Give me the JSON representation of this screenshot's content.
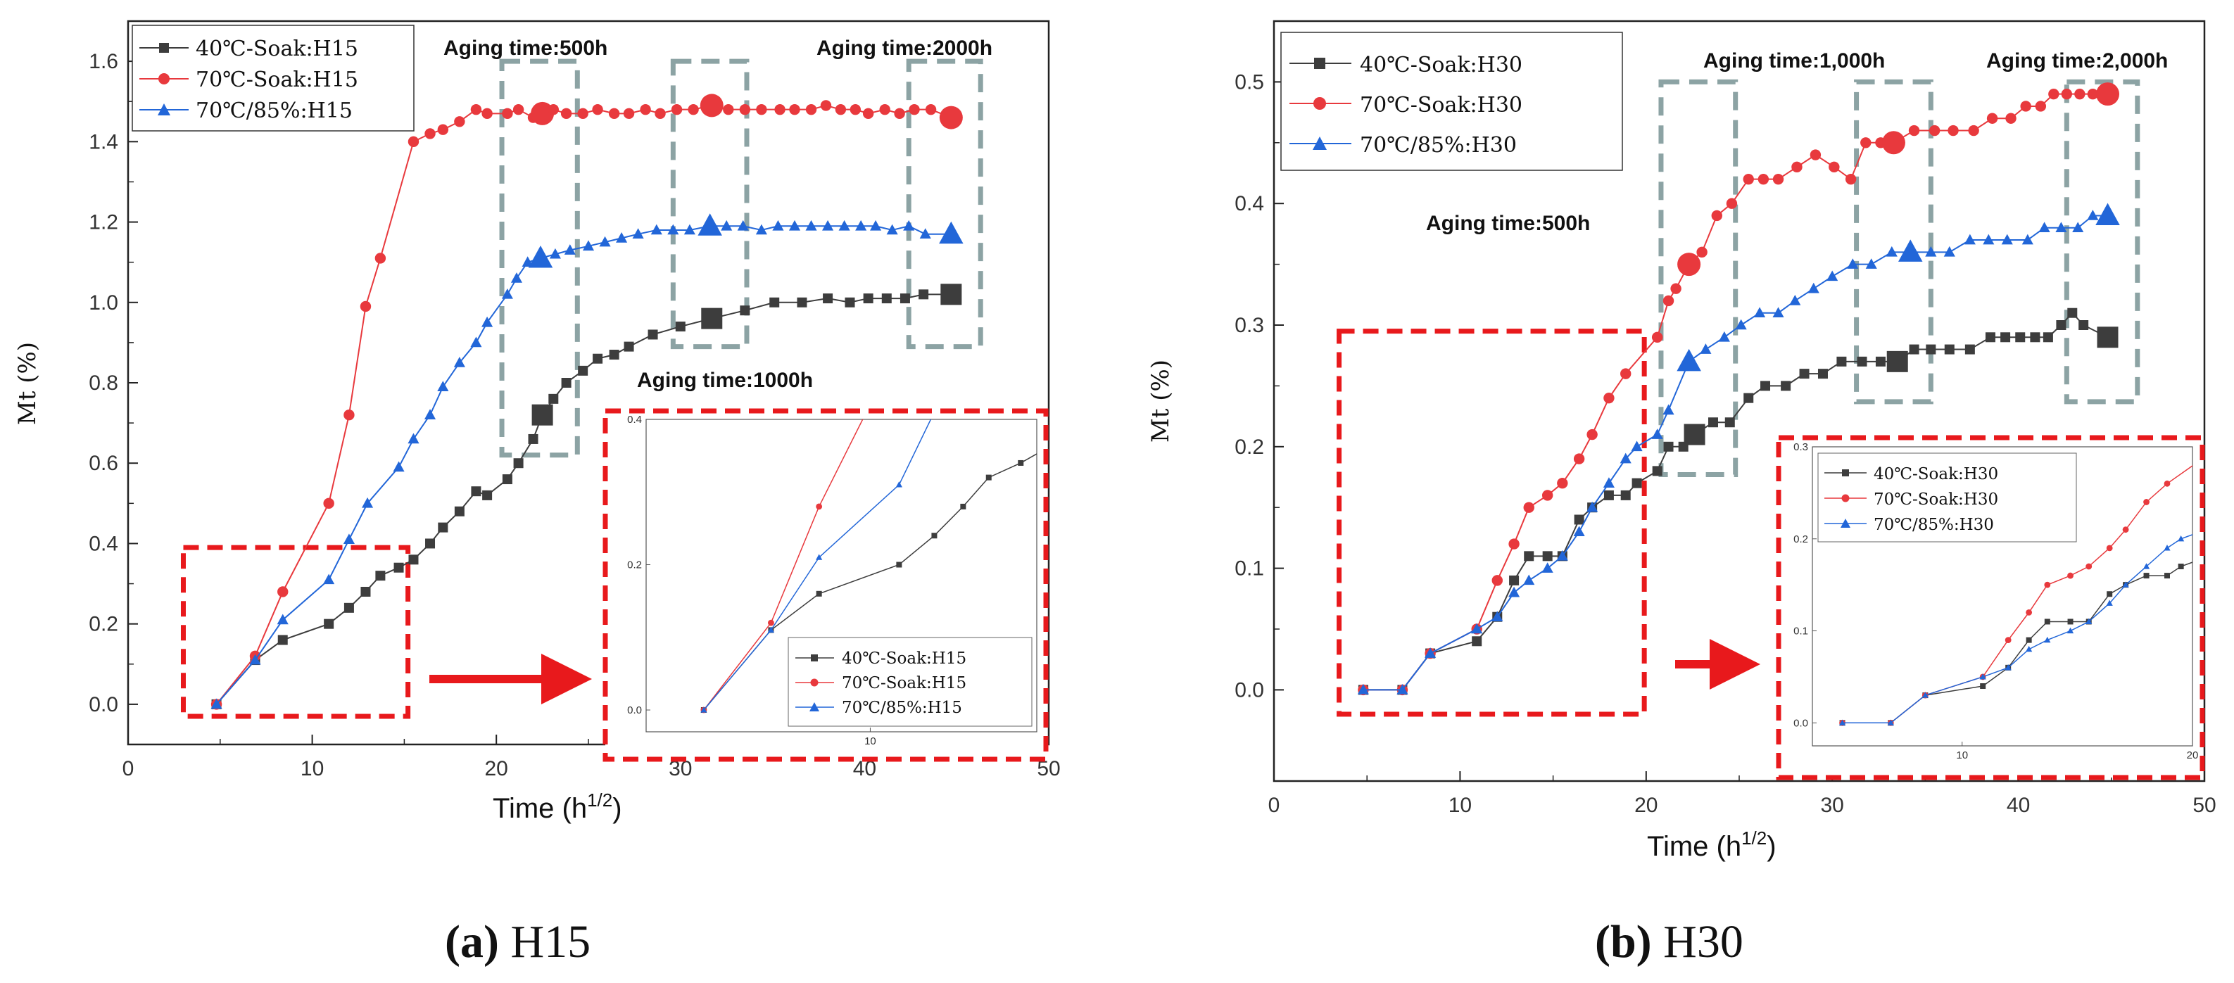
{
  "colors": {
    "series": [
      "#3d3d3d",
      "#e8393d",
      "#2266d8"
    ],
    "annotation_box": "#e8191c",
    "aging_box": "#8ca3a4"
  },
  "chart_data": [
    {
      "type": "line",
      "panel": "a",
      "caption_letter": "(a)",
      "caption_text": " H15",
      "xlabel": "Time (h",
      "xlabel_sup": "1/2",
      "xlabel_close": ")",
      "ylabel": "Mt  (%)",
      "xlim": [
        0,
        50
      ],
      "ylim": [
        -0.1,
        1.7
      ],
      "xticks": [
        0,
        10,
        20,
        30,
        40,
        50
      ],
      "xtick_labels": [
        "0",
        "10",
        "20",
        "30",
        "40",
        "50"
      ],
      "yticks": [
        0,
        0.2,
        0.4,
        0.6,
        0.8,
        1.0,
        1.2,
        1.4,
        1.6
      ],
      "ytick_labels": [
        "0.0",
        "0.2",
        "0.4",
        "0.6",
        "0.8",
        "1.0",
        "1.2",
        "1.4",
        "1.6"
      ],
      "legend_position": "top-left",
      "series": [
        {
          "name": "40℃-Soak:H15",
          "marker": "square",
          "x": [
            4.8,
            6.9,
            8.4,
            10.9,
            12.0,
            12.9,
            13.7,
            14.7,
            15.5,
            16.4,
            17.1,
            18.0,
            18.9,
            19.5,
            20.6,
            21.2,
            22.0,
            22.5,
            23.1,
            23.8,
            24.7,
            25.5,
            26.4,
            27.2,
            28.5,
            30.0,
            31.7,
            33.5,
            35.1,
            36.6,
            38.0,
            39.2,
            40.2,
            41.2,
            42.2,
            43.2,
            44.7
          ],
          "y": [
            0,
            0.11,
            0.16,
            0.2,
            0.24,
            0.28,
            0.32,
            0.34,
            0.36,
            0.4,
            0.44,
            0.48,
            0.53,
            0.52,
            0.56,
            0.6,
            0.66,
            0.72,
            0.76,
            0.8,
            0.83,
            0.86,
            0.87,
            0.89,
            0.92,
            0.94,
            0.96,
            0.98,
            1.0,
            1.0,
            1.01,
            1.0,
            1.01,
            1.01,
            1.01,
            1.02,
            1.02
          ],
          "big_marker_index": [
            17,
            26,
            36
          ]
        },
        {
          "name": "70℃-Soak:H15",
          "marker": "circle",
          "x": [
            4.8,
            6.9,
            8.4,
            10.9,
            12.0,
            12.9,
            13.7,
            15.5,
            16.4,
            17.1,
            18.0,
            18.9,
            19.5,
            20.6,
            21.2,
            22.0,
            22.5,
            23.1,
            23.8,
            24.7,
            25.5,
            26.4,
            27.2,
            28.1,
            28.9,
            29.8,
            30.7,
            31.7,
            32.6,
            33.5,
            34.4,
            35.4,
            36.2,
            37.1,
            37.9,
            38.7,
            39.5,
            40.2,
            41.1,
            41.9,
            42.7,
            43.6,
            44.7
          ],
          "y": [
            0,
            0.12,
            0.28,
            0.5,
            0.72,
            0.99,
            1.11,
            1.4,
            1.42,
            1.43,
            1.45,
            1.48,
            1.47,
            1.47,
            1.48,
            1.46,
            1.47,
            1.48,
            1.47,
            1.47,
            1.48,
            1.47,
            1.47,
            1.48,
            1.47,
            1.48,
            1.48,
            1.49,
            1.48,
            1.48,
            1.48,
            1.48,
            1.48,
            1.48,
            1.49,
            1.48,
            1.48,
            1.47,
            1.48,
            1.47,
            1.48,
            1.48,
            1.46
          ],
          "big_marker_index": [
            16,
            27,
            42
          ]
        },
        {
          "name": "70℃/85%:H15",
          "marker": "triangle",
          "x": [
            4.8,
            6.9,
            8.4,
            10.9,
            12.0,
            13.0,
            14.7,
            15.5,
            16.4,
            17.1,
            18.0,
            18.9,
            19.5,
            20.6,
            21.1,
            21.7,
            22.4,
            23.2,
            24.0,
            25.0,
            25.9,
            26.8,
            27.7,
            28.7,
            29.6,
            30.5,
            31.6,
            32.5,
            33.4,
            34.4,
            35.3,
            36.2,
            37.1,
            38.0,
            38.9,
            39.8,
            40.6,
            41.5,
            42.4,
            43.3,
            44.7
          ],
          "y": [
            0,
            0.11,
            0.21,
            0.31,
            0.41,
            0.5,
            0.59,
            0.66,
            0.72,
            0.79,
            0.85,
            0.9,
            0.95,
            1.02,
            1.06,
            1.1,
            1.11,
            1.12,
            1.13,
            1.14,
            1.15,
            1.16,
            1.17,
            1.18,
            1.18,
            1.18,
            1.19,
            1.19,
            1.19,
            1.18,
            1.19,
            1.19,
            1.19,
            1.19,
            1.19,
            1.19,
            1.19,
            1.18,
            1.19,
            1.17,
            1.17
          ],
          "big_marker_index": [
            16,
            26,
            40
          ]
        }
      ],
      "zoom_box": {
        "x": [
          3,
          15.2
        ],
        "y": [
          -0.03,
          0.39
        ]
      },
      "aging_boxes": [
        {
          "x": [
            20.3,
            24.4
          ],
          "y": [
            0.62,
            1.6
          ]
        },
        {
          "x": [
            29.6,
            33.6
          ],
          "y": [
            0.89,
            1.6
          ]
        },
        {
          "x": [
            42.4,
            46.3
          ],
          "y": [
            0.89,
            1.6
          ]
        }
      ],
      "annotations": [
        "Aging time:500h",
        "Aging time:2000h",
        "Aging time:1000h"
      ],
      "inset": {
        "xlim": [
          3,
          15.2
        ],
        "ylim": [
          -0.03,
          0.4
        ],
        "xticks": [
          10
        ],
        "xtick_labels": [
          "10"
        ],
        "yticks": [
          0,
          0.2,
          0.4
        ],
        "ytick_labels": [
          "0.0",
          "0.2",
          "0.4"
        ],
        "legend_position": "bottom-right"
      }
    },
    {
      "type": "line",
      "panel": "b",
      "caption_letter": "(b)",
      "caption_text": " H30",
      "xlabel": "Time (h",
      "xlabel_sup": "1/2",
      "xlabel_close": ")",
      "ylabel": "Mt  (%)",
      "xlim": [
        0,
        50
      ],
      "ylim": [
        -0.075,
        0.55
      ],
      "xticks": [
        0,
        10,
        20,
        30,
        40,
        50
      ],
      "xtick_labels": [
        "0",
        "10",
        "20",
        "30",
        "40",
        "50"
      ],
      "yticks": [
        0,
        0.1,
        0.2,
        0.3,
        0.4,
        0.5
      ],
      "ytick_labels": [
        "0.0",
        "0.1",
        "0.2",
        "0.3",
        "0.4",
        "0.5"
      ],
      "legend_position": "top-left",
      "series": [
        {
          "name": "40℃-Soak:H30",
          "marker": "square",
          "x": [
            4.8,
            6.9,
            8.4,
            10.9,
            12.0,
            12.9,
            13.7,
            14.7,
            15.5,
            16.4,
            17.1,
            18.0,
            18.9,
            19.5,
            20.6,
            21.2,
            22.0,
            22.6,
            23.6,
            24.5,
            25.5,
            26.4,
            27.5,
            28.5,
            29.5,
            30.5,
            31.6,
            32.6,
            33.5,
            34.4,
            35.3,
            36.3,
            37.4,
            38.5,
            39.3,
            40.1,
            40.9,
            41.6,
            42.3,
            42.9,
            43.5,
            44.8
          ],
          "y": [
            0,
            0,
            0.03,
            0.04,
            0.06,
            0.09,
            0.11,
            0.11,
            0.11,
            0.14,
            0.15,
            0.16,
            0.16,
            0.17,
            0.18,
            0.2,
            0.2,
            0.21,
            0.22,
            0.22,
            0.24,
            0.25,
            0.25,
            0.26,
            0.26,
            0.27,
            0.27,
            0.27,
            0.27,
            0.28,
            0.28,
            0.28,
            0.28,
            0.29,
            0.29,
            0.29,
            0.29,
            0.29,
            0.3,
            0.31,
            0.3,
            0.29
          ],
          "big_marker_index": [
            17,
            28,
            41
          ]
        },
        {
          "name": "70℃-Soak:H30",
          "marker": "circle",
          "x": [
            4.8,
            6.9,
            8.4,
            10.9,
            12.0,
            12.9,
            13.7,
            14.7,
            15.5,
            16.4,
            17.1,
            18.0,
            18.9,
            20.6,
            21.2,
            21.6,
            22.3,
            23.0,
            23.8,
            24.6,
            25.5,
            26.3,
            27.1,
            28.1,
            29.1,
            30.1,
            31.0,
            31.8,
            32.6,
            33.3,
            34.4,
            35.5,
            36.5,
            37.6,
            38.6,
            39.6,
            40.4,
            41.2,
            41.9,
            42.6,
            43.3,
            44.0,
            44.8
          ],
          "y": [
            0,
            0,
            0.03,
            0.05,
            0.09,
            0.12,
            0.15,
            0.16,
            0.17,
            0.19,
            0.21,
            0.24,
            0.26,
            0.29,
            0.32,
            0.33,
            0.35,
            0.36,
            0.39,
            0.4,
            0.42,
            0.42,
            0.42,
            0.43,
            0.44,
            0.43,
            0.42,
            0.45,
            0.45,
            0.45,
            0.46,
            0.46,
            0.46,
            0.46,
            0.47,
            0.47,
            0.48,
            0.48,
            0.49,
            0.49,
            0.49,
            0.49,
            0.49
          ],
          "big_marker_index": [
            16,
            29,
            42
          ]
        },
        {
          "name": "70℃/85%:H30",
          "marker": "triangle",
          "x": [
            4.8,
            6.9,
            8.4,
            10.9,
            12.0,
            12.9,
            13.7,
            14.7,
            15.5,
            16.4,
            17.1,
            18.0,
            18.9,
            19.5,
            20.6,
            21.2,
            22.3,
            23.2,
            24.2,
            25.1,
            26.1,
            27.1,
            28.0,
            29.0,
            30.0,
            31.1,
            32.1,
            33.2,
            34.2,
            35.3,
            36.3,
            37.4,
            38.4,
            39.4,
            40.5,
            41.4,
            42.3,
            43.2,
            44.0,
            44.8
          ],
          "y": [
            0,
            0,
            0.03,
            0.05,
            0.06,
            0.08,
            0.09,
            0.1,
            0.11,
            0.13,
            0.15,
            0.17,
            0.19,
            0.2,
            0.21,
            0.23,
            0.27,
            0.28,
            0.29,
            0.3,
            0.31,
            0.31,
            0.32,
            0.33,
            0.34,
            0.35,
            0.35,
            0.36,
            0.36,
            0.36,
            0.36,
            0.37,
            0.37,
            0.37,
            0.37,
            0.38,
            0.38,
            0.38,
            0.39,
            0.39
          ],
          "big_marker_index": [
            16,
            28,
            39
          ]
        }
      ],
      "zoom_box": {
        "x": [
          3.5,
          19.9
        ],
        "y": [
          -0.02,
          0.295
        ]
      },
      "aging_boxes": [
        {
          "x": [
            20.8,
            24.8
          ],
          "y": [
            0.177,
            0.5
          ]
        },
        {
          "x": [
            31.3,
            35.3
          ],
          "y": [
            0.237,
            0.5
          ]
        },
        {
          "x": [
            42.6,
            46.4
          ],
          "y": [
            0.237,
            0.5
          ]
        }
      ],
      "annotations": [
        "Aging time:1,000h",
        "Aging time:2,000h",
        "Aging time:500h"
      ],
      "inset": {
        "xlim": [
          3.5,
          20
        ],
        "ylim": [
          -0.025,
          0.3
        ],
        "xticks": [
          10,
          20
        ],
        "xtick_labels": [
          "10",
          "20"
        ],
        "yticks": [
          0,
          0.1,
          0.2,
          0.3
        ],
        "ytick_labels": [
          "0.0",
          "0.1",
          "0.2",
          "0.3"
        ],
        "legend_position": "top-left"
      }
    }
  ]
}
